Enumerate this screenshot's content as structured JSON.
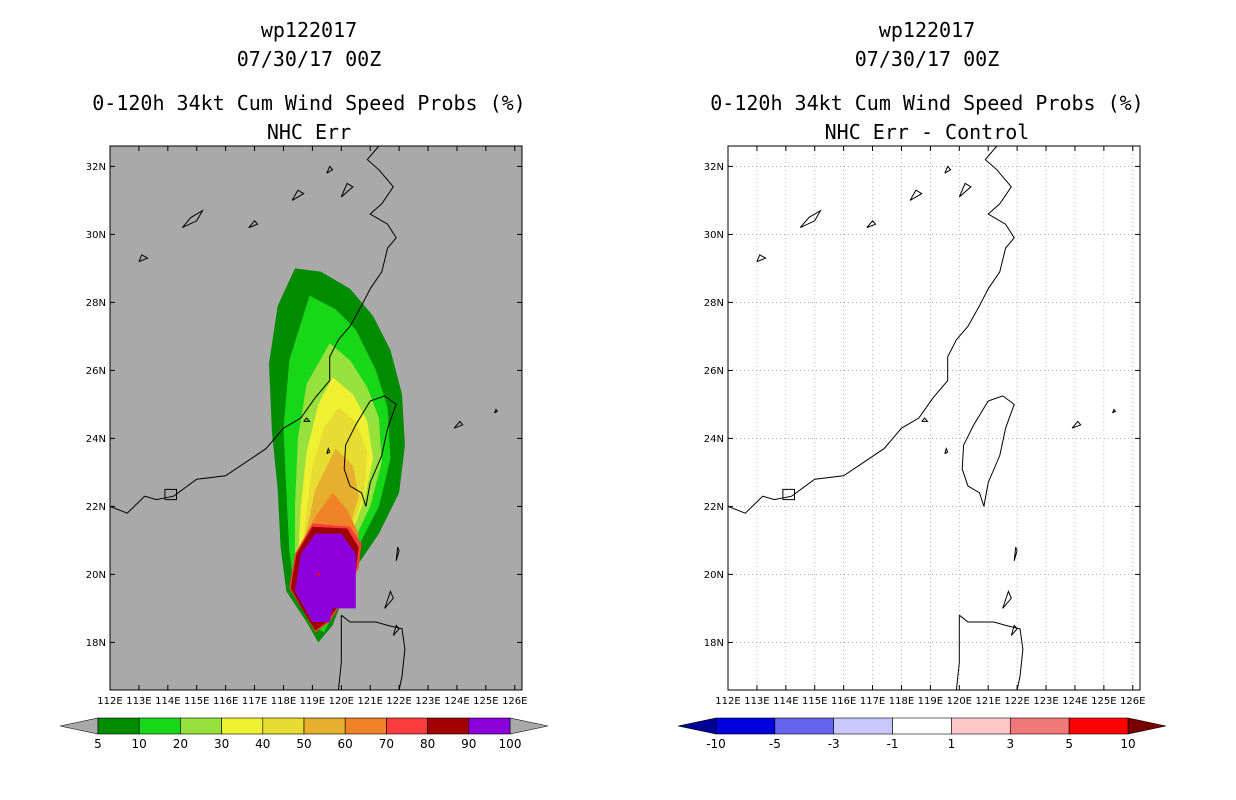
{
  "chart_data": [
    {
      "type": "map",
      "title_lines": [
        "wp122017",
        "07/30/17 00Z"
      ],
      "title": "0-120h 34kt Cum Wind Speed Probs (%)",
      "subtitle": "NHC Err",
      "x_ticks": [
        "112E",
        "113E",
        "114E",
        "115E",
        "116E",
        "117E",
        "118E",
        "119E",
        "120E",
        "121E",
        "122E",
        "123E",
        "124E",
        "125E",
        "126E"
      ],
      "y_ticks": [
        "18N",
        "20N",
        "22N",
        "24N",
        "26N",
        "28N",
        "30N",
        "32N"
      ],
      "background": "#a9a9a9",
      "colorbar": {
        "labels": [
          "5",
          "10",
          "20",
          "30",
          "40",
          "50",
          "60",
          "70",
          "80",
          "90",
          "100"
        ],
        "colors": [
          "#008c00",
          "#18d618",
          "#96e13c",
          "#f0f032",
          "#e6dc32",
          "#e6af2d",
          "#f08228",
          "#fa3c3c",
          "#a00000",
          "#8c00dc"
        ],
        "under": "#a9a9a9",
        "over": "#a9a9a9"
      }
    },
    {
      "type": "map",
      "title_lines": [
        "wp122017",
        "07/30/17 00Z"
      ],
      "title": "0-120h 34kt Cum Wind Speed Probs (%)",
      "subtitle": "NHC Err - Control",
      "x_ticks": [
        "112E",
        "113E",
        "114E",
        "115E",
        "116E",
        "117E",
        "118E",
        "119E",
        "120E",
        "121E",
        "122E",
        "123E",
        "124E",
        "125E",
        "126E"
      ],
      "y_ticks": [
        "18N",
        "20N",
        "22N",
        "24N",
        "26N",
        "28N",
        "30N",
        "32N"
      ],
      "background": "#ffffff",
      "colorbar": {
        "labels": [
          "-10",
          "-5",
          "-3",
          "-1",
          "1",
          "3",
          "5",
          "10"
        ],
        "colors": [
          "#0000dc",
          "#6464f0",
          "#c8c8ff",
          "#ffffff",
          "#ffc8c8",
          "#f07878",
          "#ff0000"
        ],
        "under": "#000096",
        "over": "#780000"
      }
    }
  ]
}
